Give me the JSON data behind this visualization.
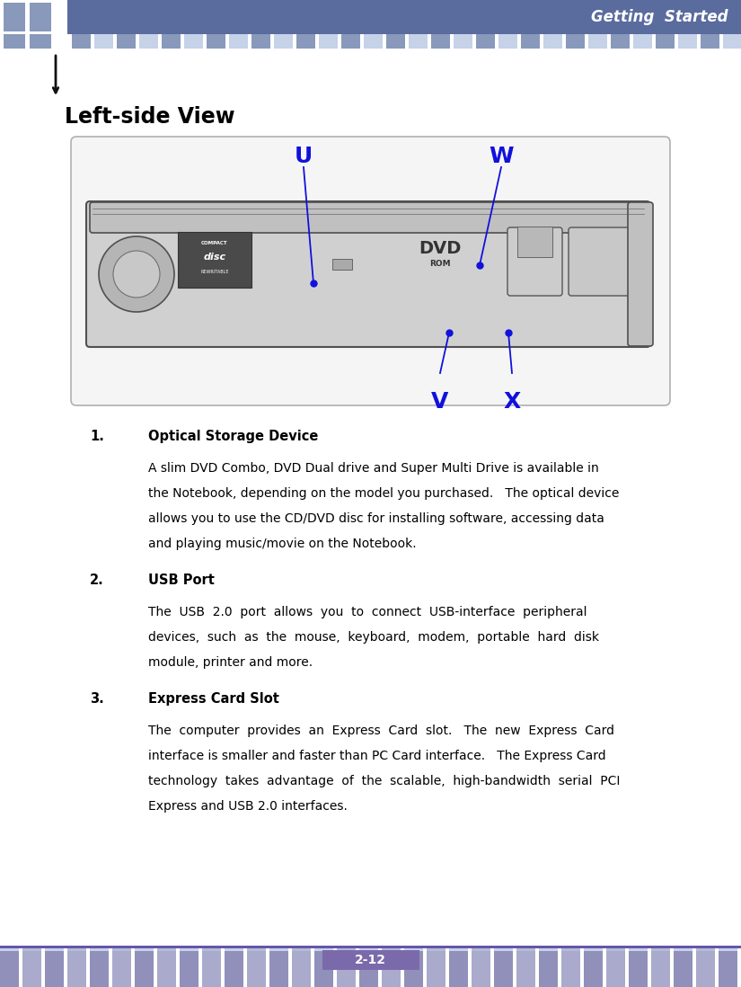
{
  "header_text": "Getting  Started",
  "header_bg": "#5a6b9e",
  "header_text_color": "#ffffff",
  "tile_color_dark": "#8899bb",
  "tile_color_light": "#c5d2e8",
  "tile_color_med": "#b0bdd4",
  "arrow_color": "#111111",
  "page_num_text": "2-12",
  "page_num_bg": "#7b6aab",
  "page_num_text_color": "#ffffff",
  "section_title": "Left-side View",
  "label_color": "#1111dd",
  "body_items": [
    {
      "num": "1.",
      "title": "Optical Storage Device",
      "lines": [
        "A slim DVD Combo, DVD Dual drive and Super Multi Drive is available in",
        "the Notebook, depending on the model you purchased.   The optical device",
        "allows you to use the CD/DVD disc for installing software, accessing data",
        "and playing music/movie on the Notebook."
      ]
    },
    {
      "num": "2.",
      "title": "USB Port",
      "lines": [
        "The  USB  2.0  port  allows  you  to  connect  USB-interface  peripheral",
        "devices,  such  as  the  mouse,  keyboard,  modem,  portable  hard  disk",
        "module, printer and more."
      ]
    },
    {
      "num": "3.",
      "title": "Express Card Slot",
      "lines": [
        "The  computer  provides  an  Express  Card  slot.   The  new  Express  Card",
        "interface is smaller and faster than PC Card interface.   The Express Card",
        "technology  takes  advantage  of  the  scalable,  high-bandwidth  serial  PCI",
        "Express and USB 2.0 interfaces."
      ]
    }
  ]
}
